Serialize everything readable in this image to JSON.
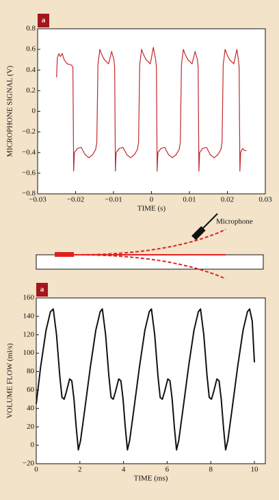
{
  "chart_data": [
    {
      "type": "line",
      "badge": "a",
      "xlabel": "TIME (s)",
      "ylabel": "MICROPHONE SIGNAL (V)",
      "color": "#c0282a",
      "xlim": [
        -0.03,
        0.03
      ],
      "ylim": [
        -0.8,
        0.8
      ],
      "xticks": [
        {
          "value": -0.03,
          "label": "−0.03"
        },
        {
          "value": -0.02,
          "label": "−0.02"
        },
        {
          "value": -0.01,
          "label": "−0.01"
        },
        0,
        0.01,
        0.02,
        0.03
      ],
      "yticks": [
        {
          "value": -0.8,
          "label": "−0.8"
        },
        {
          "value": -0.6,
          "label": "−0.6"
        },
        {
          "value": -0.4,
          "label": "−0.4"
        },
        {
          "value": -0.2,
          "label": "−0.2"
        },
        0,
        0.2,
        0.4,
        0.6,
        0.8
      ],
      "x": [
        -0.025,
        -0.0248,
        -0.0244,
        -0.024,
        -0.0235,
        -0.023,
        -0.0222,
        -0.0212,
        -0.0207,
        -0.0205,
        -0.0203,
        -0.0195,
        -0.0185,
        -0.0175,
        -0.0165,
        -0.0155,
        -0.0147,
        -0.0144,
        -0.0141,
        -0.0136,
        -0.0131,
        -0.0124,
        -0.0113,
        -0.0105,
        -0.0099,
        -0.0097,
        -0.0095,
        -0.0093,
        -0.0085,
        -0.0075,
        -0.0065,
        -0.0055,
        -0.0045,
        -0.0037,
        -0.0034,
        -0.0031,
        -0.0026,
        -0.0021,
        -0.0014,
        -0.0003,
        0.0005,
        0.0011,
        0.0013,
        0.0015,
        0.0017,
        0.0025,
        0.0035,
        0.0045,
        0.0055,
        0.0065,
        0.0073,
        0.0076,
        0.0079,
        0.0084,
        0.0089,
        0.0096,
        0.0107,
        0.0115,
        0.0121,
        0.0123,
        0.0125,
        0.0127,
        0.0135,
        0.0145,
        0.0155,
        0.0165,
        0.0175,
        0.0183,
        0.0186,
        0.0189,
        0.0194,
        0.0199,
        0.0206,
        0.0217,
        0.0225,
        0.0229,
        0.0231,
        0.0233,
        0.0235,
        0.024,
        0.0245,
        0.025
      ],
      "values": [
        0.33,
        0.52,
        0.56,
        0.53,
        0.56,
        0.5,
        0.46,
        0.45,
        0.43,
        -0.58,
        -0.4,
        -0.36,
        -0.35,
        -0.42,
        -0.45,
        -0.42,
        -0.37,
        -0.3,
        0.45,
        0.6,
        0.55,
        0.5,
        0.46,
        0.58,
        0.5,
        0.43,
        -0.58,
        -0.4,
        -0.36,
        -0.35,
        -0.42,
        -0.45,
        -0.42,
        -0.37,
        -0.3,
        0.45,
        0.6,
        0.55,
        0.5,
        0.46,
        0.62,
        0.5,
        0.43,
        -0.58,
        -0.4,
        -0.36,
        -0.35,
        -0.42,
        -0.45,
        -0.42,
        -0.37,
        -0.3,
        0.45,
        0.6,
        0.55,
        0.5,
        0.46,
        0.58,
        0.5,
        0.43,
        -0.58,
        -0.4,
        -0.36,
        -0.35,
        -0.42,
        -0.45,
        -0.42,
        -0.37,
        -0.3,
        0.45,
        0.6,
        0.55,
        0.5,
        0.46,
        0.6,
        0.5,
        0.43,
        -0.58,
        -0.4,
        -0.36,
        -0.38,
        -0.38
      ]
    },
    {
      "type": "line",
      "badge": "a",
      "xlabel": "TIME (ms)",
      "ylabel": "VOLUME FLOW (ml/s)",
      "color": "#111111",
      "xlim": [
        0,
        10.5
      ],
      "ylim": [
        -20,
        160
      ],
      "xticks": [
        0,
        2,
        4,
        6,
        8,
        10
      ],
      "yticks": [
        {
          "value": -20,
          "label": "−20"
        },
        0,
        20,
        40,
        60,
        80,
        100,
        120,
        140,
        160
      ],
      "x": [
        0,
        0.2,
        0.45,
        0.65,
        0.78,
        0.93,
        1.08,
        1.18,
        1.28,
        1.38,
        1.53,
        1.63,
        1.73,
        1.83,
        1.93,
        2.03,
        2.23,
        2.48,
        2.73,
        2.93,
        3.03,
        3.18,
        3.33,
        3.43,
        3.53,
        3.63,
        3.78,
        3.88,
        3.98,
        4.08,
        4.18,
        4.28,
        4.48,
        4.73,
        4.98,
        5.18,
        5.28,
        5.43,
        5.58,
        5.68,
        5.78,
        5.88,
        6.03,
        6.13,
        6.23,
        6.33,
        6.43,
        6.53,
        6.73,
        6.98,
        7.23,
        7.43,
        7.53,
        7.68,
        7.83,
        7.93,
        8.03,
        8.13,
        8.28,
        8.38,
        8.48,
        8.58,
        8.68,
        8.78,
        8.98,
        9.23,
        9.48,
        9.68,
        9.78,
        9.9,
        10
      ],
      "values": [
        45,
        85,
        125,
        145,
        148,
        120,
        75,
        52,
        50,
        58,
        72,
        70,
        50,
        20,
        -5,
        5,
        40,
        85,
        125,
        145,
        148,
        120,
        75,
        52,
        50,
        58,
        72,
        70,
        50,
        20,
        -5,
        5,
        40,
        85,
        125,
        145,
        148,
        120,
        75,
        52,
        50,
        58,
        72,
        70,
        50,
        20,
        -5,
        5,
        40,
        85,
        125,
        145,
        148,
        120,
        75,
        52,
        50,
        58,
        72,
        70,
        50,
        20,
        -5,
        5,
        40,
        85,
        125,
        145,
        148,
        135,
        90
      ]
    }
  ],
  "diagram": {
    "label": "Microphone"
  }
}
